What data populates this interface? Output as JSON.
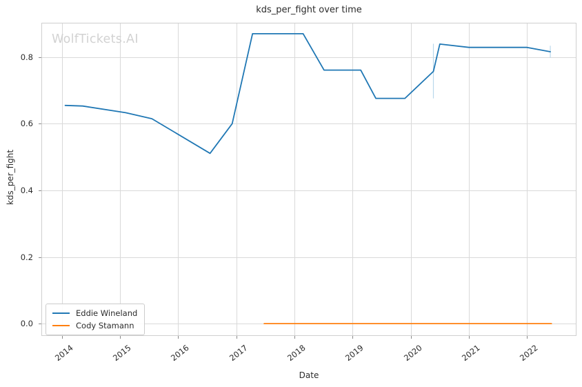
{
  "watermark": "WolfTickets.AI",
  "chart_data": {
    "type": "line",
    "title": "kds_per_fight over time",
    "xlabel": "Date",
    "ylabel": "kds_per_fight",
    "xlim": [
      2013.65,
      2022.85
    ],
    "ylim": [
      -0.037,
      0.903
    ],
    "grid": true,
    "legend_position": "lower left",
    "x_ticks": [
      2014,
      2015,
      2016,
      2017,
      2018,
      2019,
      2020,
      2021,
      2022
    ],
    "x_tick_labels": [
      "2014",
      "2015",
      "2016",
      "2017",
      "2018",
      "2019",
      "2020",
      "2021",
      "2022"
    ],
    "y_ticks": [
      0.0,
      0.2,
      0.4,
      0.6,
      0.8
    ],
    "y_tick_labels": [
      "0.0",
      "0.2",
      "0.4",
      "0.6",
      "0.8"
    ],
    "series": [
      {
        "name": "Eddie Wineland",
        "color": "#1f77b4",
        "x": [
          2014.06,
          2014.36,
          2015.1,
          2015.55,
          2016.55,
          2016.93,
          2017.28,
          2018.15,
          2018.51,
          2019.14,
          2019.4,
          2019.9,
          2020.39,
          2020.5,
          2021.0,
          2022.0,
          2022.4
        ],
        "y": [
          0.655,
          0.653,
          0.633,
          0.615,
          0.511,
          0.6,
          0.87,
          0.87,
          0.761,
          0.761,
          0.676,
          0.676,
          0.757,
          0.839,
          0.829,
          0.829,
          0.816
        ]
      },
      {
        "name": "Cody Stamann",
        "color": "#ff7f0e",
        "x": [
          2017.48,
          2022.42
        ],
        "y": [
          0.0,
          0.0
        ]
      }
    ],
    "range_bars": [
      {
        "x": 2020.39,
        "y_low": 0.676,
        "y_high": 0.84,
        "color": "#b9d7eb"
      },
      {
        "x": 2022.4,
        "y_low": 0.798,
        "y_high": 0.834,
        "color": "#b9d7eb"
      }
    ]
  },
  "colors": {
    "background": "#ffffff",
    "grid": "#d9d9d9",
    "frame": "#cfcfcf",
    "tick": "#8a8a8a",
    "text": "#2b2b2b",
    "watermark": "#d2d2d2"
  }
}
